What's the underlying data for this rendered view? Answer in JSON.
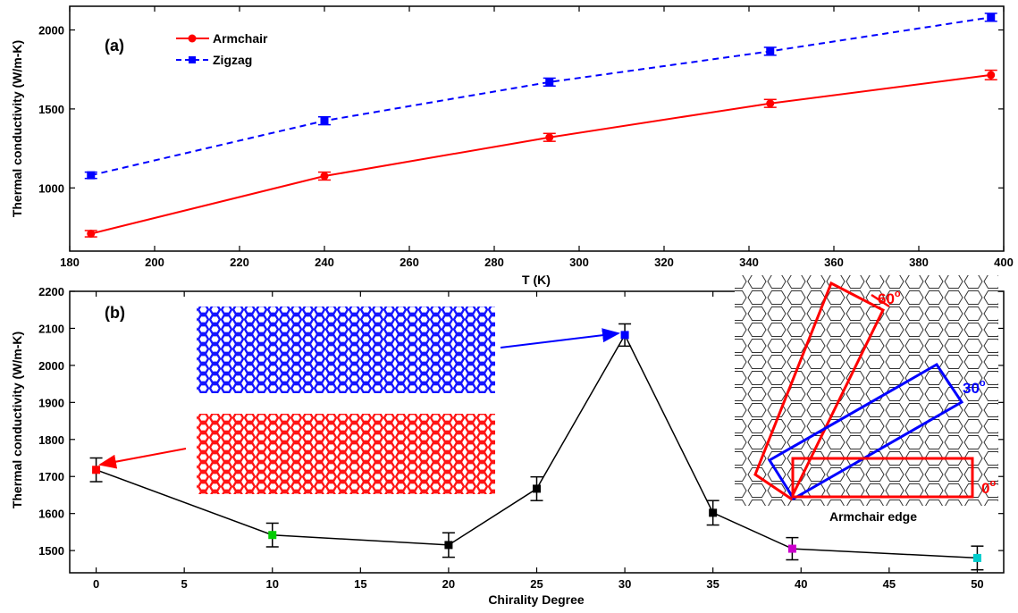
{
  "chart_data": [
    {
      "panel": "(a)",
      "type": "line",
      "xlabel": "T (K)",
      "ylabel": "Thermal conductivity (W/m-K)",
      "xlim": [
        180,
        400
      ],
      "ylim": [
        600,
        2150
      ],
      "xticks": [
        180,
        200,
        220,
        240,
        260,
        280,
        300,
        320,
        340,
        360,
        380,
        400
      ],
      "yticks": [
        1000,
        1500,
        2000
      ],
      "legend_position": "top-left",
      "series": [
        {
          "name": "Armchair",
          "color": "#ff0000",
          "line_style": "solid",
          "marker": "circle",
          "x": [
            185,
            240,
            293,
            345,
            397
          ],
          "y": [
            710,
            1075,
            1320,
            1535,
            1715
          ],
          "error": [
            20,
            25,
            25,
            25,
            30
          ]
        },
        {
          "name": "Zigzag",
          "color": "#0000ff",
          "line_style": "dashed",
          "marker": "square",
          "x": [
            185,
            240,
            293,
            345,
            397
          ],
          "y": [
            1080,
            1425,
            1670,
            1865,
            2080
          ],
          "error": [
            20,
            25,
            25,
            25,
            25
          ]
        }
      ]
    },
    {
      "panel": "(b)",
      "type": "line",
      "xlabel": "Chirality Degree",
      "ylabel": "Thermal conductivity (W/m-K)",
      "xlim": [
        -1.5,
        51.5
      ],
      "ylim": [
        1440,
        2200
      ],
      "xticks": [
        0,
        5,
        10,
        15,
        20,
        25,
        30,
        35,
        40,
        45,
        50
      ],
      "yticks": [
        1500,
        1600,
        1700,
        1800,
        1900,
        2000,
        2100,
        2200
      ],
      "line_color": "#000000",
      "points": [
        {
          "x": 0,
          "y": 1718,
          "error": 32,
          "color": "#ff0000"
        },
        {
          "x": 10,
          "y": 1542,
          "error": 32,
          "color": "#00cc00"
        },
        {
          "x": 20,
          "y": 1515,
          "error": 33,
          "color": "#000000"
        },
        {
          "x": 25,
          "y": 1667,
          "error": 32,
          "color": "#000000"
        },
        {
          "x": 30,
          "y": 2082,
          "error": 30,
          "color": "#0000ff"
        },
        {
          "x": 35,
          "y": 1602,
          "error": 33,
          "color": "#000000"
        },
        {
          "x": 39.5,
          "y": 1505,
          "error": 30,
          "color": "#cc00cc"
        },
        {
          "x": 50,
          "y": 1480,
          "error": 32,
          "color": "#00cccc"
        }
      ]
    }
  ],
  "inset": {
    "angle_labels": [
      {
        "base": "60",
        "sup": "o",
        "color": "#ff0000"
      },
      {
        "base": "30",
        "sup": "o",
        "color": "#0000ff"
      },
      {
        "base": "0",
        "sup": "o",
        "color": "#ff0000"
      }
    ],
    "caption": "Armchair edge"
  }
}
